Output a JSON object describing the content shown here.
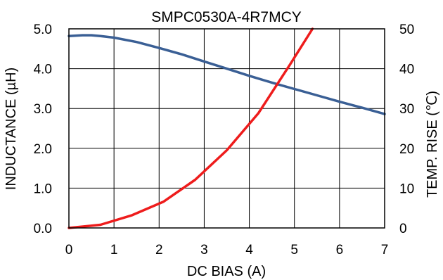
{
  "chart_data": {
    "type": "line",
    "title": "SMPC0530A-4R7MCY",
    "xlabel": "DC BIAS (A)",
    "ylabel_left": "INDUCTANCE (µH)",
    "ylabel_right": "TEMP. RISE (℃)",
    "xlim": [
      0,
      7
    ],
    "ylim_left": [
      0,
      5
    ],
    "ylim_right": [
      0,
      50
    ],
    "grid": true,
    "x_ticks": [
      "0",
      "1",
      "2",
      "3",
      "4",
      "5",
      "6",
      "7"
    ],
    "y_left_ticks": [
      "0.0",
      "1.0",
      "2.0",
      "3.0",
      "4.0",
      "5.0"
    ],
    "y_right_ticks": [
      "0",
      "10",
      "20",
      "30",
      "40",
      "50"
    ],
    "series": [
      {
        "axis": "left",
        "color": "#3a5f95",
        "x": [
          0,
          0.3,
          0.5,
          0.7,
          1.0,
          1.5,
          2.0,
          2.5,
          3.0,
          3.5,
          4.0,
          4.5,
          5.0,
          5.5,
          6.0,
          6.5,
          7.0
        ],
        "y": [
          4.82,
          4.84,
          4.84,
          4.82,
          4.78,
          4.67,
          4.52,
          4.36,
          4.18,
          4.0,
          3.82,
          3.65,
          3.49,
          3.33,
          3.17,
          3.02,
          2.86
        ]
      },
      {
        "axis": "right",
        "color": "#ee1c1c",
        "x": [
          0,
          0.7,
          1.4,
          2.1,
          2.8,
          3.5,
          4.2,
          4.9,
          5.4
        ],
        "y": [
          0,
          0.8,
          3.2,
          6.6,
          12.1,
          19.5,
          28.8,
          41.0,
          50.0
        ]
      }
    ]
  }
}
